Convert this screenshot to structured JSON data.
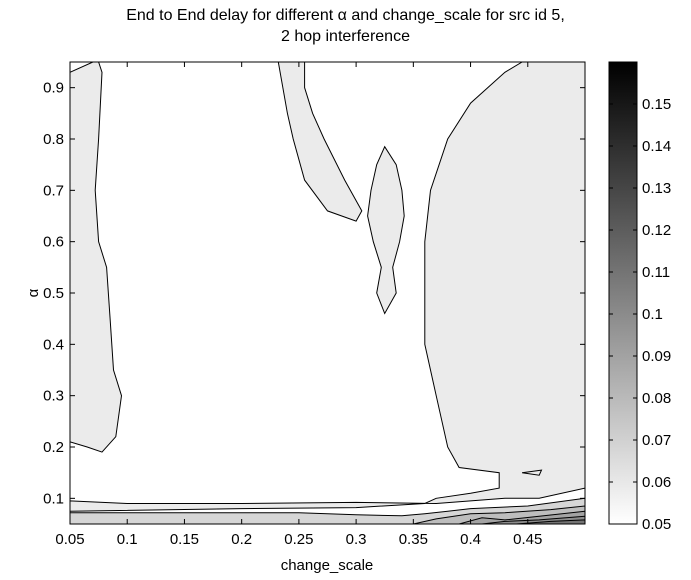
{
  "chart_data": {
    "type": "contour",
    "title_line1": "End to End delay for different α and change_scale for src id 5,",
    "title_line2": "2 hop interference",
    "xlabel": "change_scale",
    "ylabel": "α",
    "xlim": [
      0.05,
      0.5
    ],
    "ylim": [
      0.05,
      0.95
    ],
    "xticks": [
      0.05,
      0.1,
      0.15,
      0.2,
      0.25,
      0.3,
      0.35,
      0.4,
      0.45
    ],
    "xtick_labels": [
      "0.05",
      "0.1",
      "0.15",
      "0.2",
      "0.25",
      "0.3",
      "0.35",
      "0.4",
      "0.45"
    ],
    "yticks": [
      0.1,
      0.2,
      0.3,
      0.4,
      0.5,
      0.6,
      0.7,
      0.8,
      0.9
    ],
    "ytick_labels": [
      "0.1",
      "0.2",
      "0.3",
      "0.4",
      "0.5",
      "0.6",
      "0.7",
      "0.8",
      "0.9"
    ],
    "colorbar": {
      "colormap": "gray (reversed: white = low, black = high)",
      "range": [
        0.05,
        0.16
      ],
      "ticks": [
        0.05,
        0.06,
        0.07,
        0.08,
        0.09,
        0.1,
        0.11,
        0.12,
        0.13,
        0.14,
        0.15
      ],
      "tick_labels": [
        "0.05",
        "0.06",
        "0.07",
        "0.08",
        "0.09",
        "0.1",
        "0.11",
        "0.12",
        "0.13",
        "0.14",
        "0.15"
      ]
    },
    "regions": [
      {
        "level": 0.05,
        "color": "#ffffff",
        "shape": "background"
      },
      {
        "level": 0.06,
        "color": "#ebebeb",
        "points": [
          [
            0.5,
            0.95
          ],
          [
            0.5,
            0.12
          ],
          [
            0.46,
            0.1
          ],
          [
            0.43,
            0.1
          ],
          [
            0.4,
            0.095
          ],
          [
            0.37,
            0.09
          ],
          [
            0.3,
            0.092
          ],
          [
            0.2,
            0.09
          ],
          [
            0.1,
            0.09
          ],
          [
            0.05,
            0.095
          ],
          [
            0.05,
            0.075
          ],
          [
            0.2,
            0.08
          ],
          [
            0.3,
            0.082
          ],
          [
            0.36,
            0.09
          ],
          [
            0.37,
            0.1
          ],
          [
            0.4,
            0.11
          ],
          [
            0.425,
            0.12
          ],
          [
            0.425,
            0.15
          ],
          [
            0.39,
            0.16
          ],
          [
            0.38,
            0.2
          ],
          [
            0.37,
            0.3
          ],
          [
            0.36,
            0.4
          ],
          [
            0.36,
            0.5
          ],
          [
            0.36,
            0.6
          ],
          [
            0.365,
            0.7
          ],
          [
            0.38,
            0.8
          ],
          [
            0.4,
            0.87
          ],
          [
            0.43,
            0.93
          ],
          [
            0.445,
            0.95
          ]
        ]
      },
      {
        "level": 0.06,
        "color": "#ebebeb",
        "points": [
          [
            0.232,
            0.95
          ],
          [
            0.255,
            0.95
          ],
          [
            0.255,
            0.9
          ],
          [
            0.262,
            0.85
          ],
          [
            0.272,
            0.8
          ],
          [
            0.29,
            0.72
          ],
          [
            0.305,
            0.66
          ],
          [
            0.3,
            0.64
          ],
          [
            0.275,
            0.66
          ],
          [
            0.255,
            0.72
          ],
          [
            0.245,
            0.8
          ],
          [
            0.24,
            0.85
          ]
        ]
      },
      {
        "level": 0.06,
        "color": "#ebebeb",
        "points": [
          [
            0.325,
            0.785
          ],
          [
            0.335,
            0.75
          ],
          [
            0.34,
            0.7
          ],
          [
            0.342,
            0.65
          ],
          [
            0.338,
            0.6
          ],
          [
            0.332,
            0.55
          ],
          [
            0.335,
            0.5
          ],
          [
            0.325,
            0.46
          ],
          [
            0.318,
            0.5
          ],
          [
            0.322,
            0.55
          ],
          [
            0.315,
            0.6
          ],
          [
            0.31,
            0.65
          ],
          [
            0.313,
            0.7
          ],
          [
            0.318,
            0.75
          ]
        ]
      },
      {
        "level": 0.06,
        "color": "#ebebeb",
        "points": [
          [
            0.05,
            0.93
          ],
          [
            0.07,
            0.95
          ],
          [
            0.075,
            0.95
          ],
          [
            0.078,
            0.93
          ],
          [
            0.075,
            0.8
          ],
          [
            0.072,
            0.7
          ],
          [
            0.075,
            0.6
          ],
          [
            0.082,
            0.55
          ],
          [
            0.085,
            0.45
          ],
          [
            0.088,
            0.35
          ],
          [
            0.095,
            0.3
          ],
          [
            0.09,
            0.22
          ],
          [
            0.078,
            0.19
          ],
          [
            0.065,
            0.2
          ],
          [
            0.05,
            0.21
          ]
        ]
      },
      {
        "level": 0.07,
        "color": "#d6d6d6",
        "points": [
          [
            0.05,
            0.072
          ],
          [
            0.15,
            0.072
          ],
          [
            0.25,
            0.072
          ],
          [
            0.3,
            0.068
          ],
          [
            0.34,
            0.066
          ],
          [
            0.36,
            0.07
          ],
          [
            0.38,
            0.075
          ],
          [
            0.4,
            0.08
          ],
          [
            0.45,
            0.085
          ],
          [
            0.5,
            0.1
          ],
          [
            0.5,
            0.05
          ],
          [
            0.05,
            0.05
          ]
        ]
      },
      {
        "level": 0.08,
        "color": "#bdbdbd",
        "points": [
          [
            0.35,
            0.05
          ],
          [
            0.37,
            0.06
          ],
          [
            0.4,
            0.07
          ],
          [
            0.43,
            0.072
          ],
          [
            0.47,
            0.078
          ],
          [
            0.5,
            0.085
          ],
          [
            0.5,
            0.05
          ]
        ]
      },
      {
        "level": 0.09,
        "color": "#a3a3a3",
        "points": [
          [
            0.39,
            0.05
          ],
          [
            0.41,
            0.062
          ],
          [
            0.43,
            0.058
          ],
          [
            0.46,
            0.065
          ],
          [
            0.5,
            0.075
          ],
          [
            0.5,
            0.05
          ]
        ]
      },
      {
        "level": 0.1,
        "color": "#8c8c8c",
        "points": [
          [
            0.41,
            0.05
          ],
          [
            0.43,
            0.055
          ],
          [
            0.46,
            0.058
          ],
          [
            0.5,
            0.065
          ],
          [
            0.5,
            0.05
          ]
        ]
      },
      {
        "level": 0.11,
        "color": "#737373",
        "points": [
          [
            0.44,
            0.05
          ],
          [
            0.47,
            0.055
          ],
          [
            0.5,
            0.058
          ],
          [
            0.5,
            0.05
          ]
        ]
      },
      {
        "level": 0.06,
        "color": "#ebebeb",
        "points": [
          [
            0.445,
            0.15
          ],
          [
            0.462,
            0.155
          ],
          [
            0.46,
            0.145
          ]
        ]
      }
    ]
  }
}
